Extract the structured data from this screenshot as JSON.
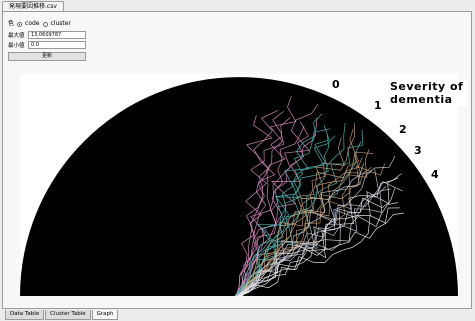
{
  "window": {
    "tab_label": "発現要因推移.csv"
  },
  "controls": {
    "color_label": "色",
    "radio_code": "code",
    "radio_cluster": "cluster",
    "max_label": "最大値",
    "max_value": "13.0609787",
    "min_label": "最小値",
    "min_value": "0.0",
    "update_label": "更新"
  },
  "tabs": [
    {
      "label": "Data Table"
    },
    {
      "label": "Cluster Table"
    },
    {
      "label": "Graph"
    }
  ],
  "annotation": {
    "title_line1": "Severity of",
    "title_line2": "dementia",
    "levels": [
      "0",
      "1",
      "2",
      "3",
      "4"
    ]
  },
  "colors": {
    "level0": "#e08ec8",
    "level1": "#4fbfbf",
    "level2": "#c9a27a",
    "level3": "#c9d0e0",
    "level4": "#f0f0f0",
    "plot_bg": "#000000"
  }
}
